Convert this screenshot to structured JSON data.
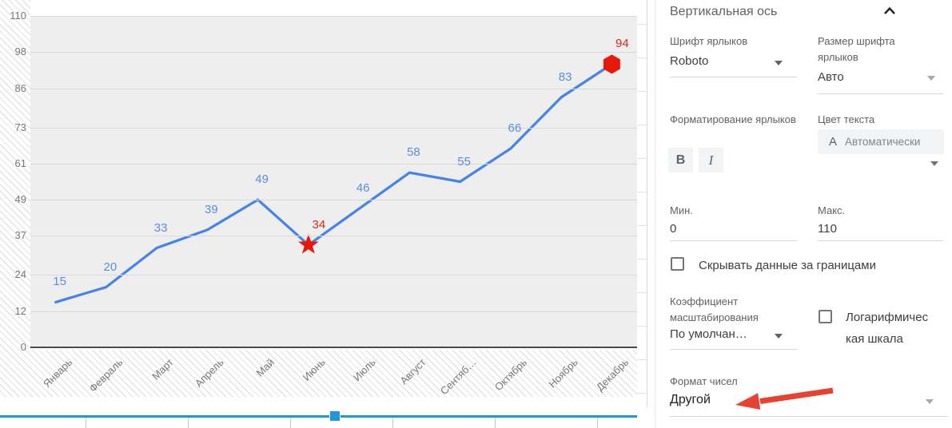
{
  "chart_data": {
    "type": "line",
    "categories": [
      "Январь",
      "Февраль",
      "Март",
      "Апрель",
      "Май",
      "Июнь",
      "Июль",
      "Август",
      "Сентяб…",
      "Октябрь",
      "Ноябрь",
      "Декабрь"
    ],
    "values": [
      15,
      20,
      33,
      39,
      49,
      34,
      46,
      58,
      55,
      66,
      83,
      94
    ],
    "y_ticks": [
      0,
      12,
      24,
      37,
      49,
      61,
      73,
      86,
      98,
      110
    ],
    "ylim": [
      0,
      110
    ],
    "xlabel": "",
    "ylabel": "",
    "title": "",
    "grid": true,
    "legend": "none",
    "series_color": "#4583ec",
    "data_label_color": "#5b8de0",
    "highlight_label_color": "#d7281d",
    "marker_color": "#e8170c",
    "highlights": [
      {
        "index": 5,
        "shape": "star",
        "value": 34
      },
      {
        "index": 11,
        "shape": "hexagon",
        "value": 94
      }
    ]
  },
  "panel": {
    "title": "Вертикальная ось",
    "font_label": "Шрифт ярлыков",
    "font_value": "Roboto",
    "font_size_label": "Размер шрифта ярлыков",
    "font_size_value": "Авто",
    "format_label": "Форматирование ярлыков",
    "bold_label": "B",
    "italic_label": "I",
    "text_color_label": "Цвет текста",
    "text_color_prefix": "A",
    "text_color_value": "Автоматически",
    "min_label": "Мин.",
    "min_value": "0",
    "max_label": "Макс.",
    "max_value": "110",
    "hide_outside_label": "Скрывать данные за границами",
    "scale_label": "Коэффициент масштабирования",
    "scale_value": "По умолчан…",
    "log_label_line1": "Логарифмичес",
    "log_label_line2": "кая шкала",
    "number_format_label": "Формат чисел",
    "number_format_value": "Другой"
  }
}
